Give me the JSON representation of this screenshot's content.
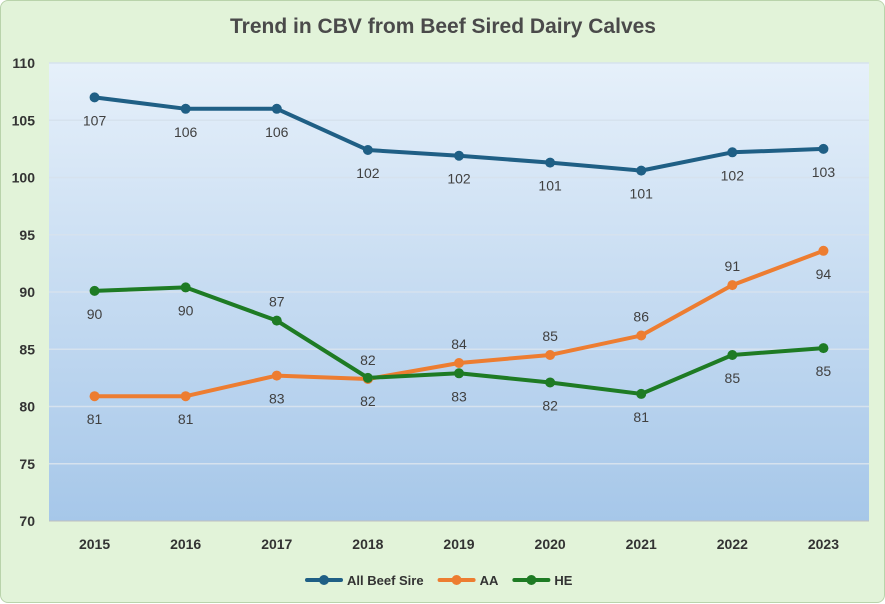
{
  "chart_data": {
    "type": "line",
    "title": "Trend in CBV from Beef Sired Dairy Calves",
    "xlabel": "",
    "ylabel": "",
    "ylim": [
      70,
      110
    ],
    "yticks": [
      70,
      75,
      80,
      85,
      90,
      95,
      100,
      105,
      110
    ],
    "categories": [
      "2015",
      "2016",
      "2017",
      "2018",
      "2019",
      "2020",
      "2021",
      "2022",
      "2023"
    ],
    "grid": true,
    "legend": "bottom",
    "series": [
      {
        "name": "All Beef Sire",
        "color": "#1f5f85",
        "values": [
          107.0,
          106.0,
          106.0,
          102.4,
          101.9,
          101.3,
          100.6,
          102.2,
          102.5
        ],
        "labels": [
          "107",
          "106",
          "106",
          "102",
          "102",
          "101",
          "101",
          "102",
          "103"
        ],
        "label_pos": [
          "below",
          "below",
          "below",
          "below",
          "below",
          "below",
          "below",
          "below",
          "below"
        ]
      },
      {
        "name": "AA",
        "color": "#ed7d31",
        "values": [
          80.9,
          80.9,
          82.7,
          82.4,
          83.8,
          84.5,
          86.2,
          90.6,
          93.6
        ],
        "labels": [
          "81",
          "81",
          "83",
          "82",
          "84",
          "85",
          "86",
          "91",
          "94"
        ],
        "label_pos": [
          "below",
          "below",
          "below",
          "above",
          "above",
          "above",
          "above",
          "above",
          "below"
        ]
      },
      {
        "name": "HE",
        "color": "#1e7b24",
        "values": [
          90.1,
          90.4,
          87.5,
          82.5,
          82.9,
          82.1,
          81.1,
          84.5,
          85.1
        ],
        "labels": [
          "90",
          "90",
          "87",
          "82",
          "83",
          "82",
          "81",
          "85",
          "85"
        ],
        "label_pos": [
          "below",
          "below",
          "above",
          "below",
          "below",
          "below",
          "below",
          "below",
          "below"
        ]
      }
    ]
  }
}
